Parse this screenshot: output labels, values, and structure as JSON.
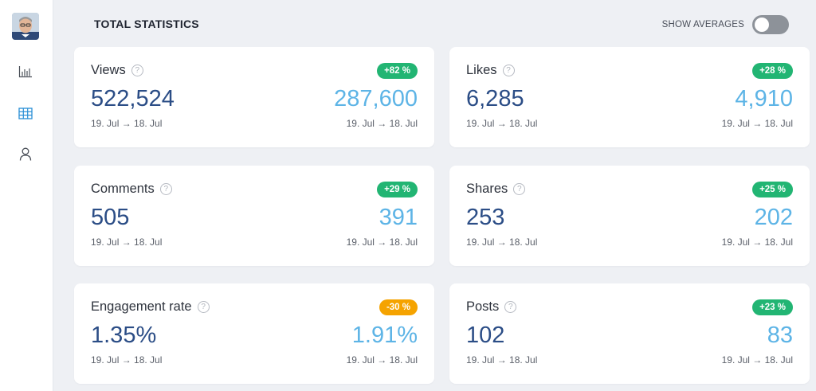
{
  "header": {
    "title": "TOTAL STATISTICS",
    "toggle_label": "SHOW AVERAGES",
    "toggle_on": false
  },
  "sidebar": {
    "items": [
      {
        "icon": "bar-chart-icon",
        "active": false
      },
      {
        "icon": "table-icon",
        "active": true
      },
      {
        "icon": "user-icon",
        "active": false
      }
    ]
  },
  "colors": {
    "positive": "#22b573",
    "negative": "#f5a300",
    "primary_value": "#2b4d86",
    "average_value": "#5db4e6",
    "active_icon": "#2a8fd6"
  },
  "cards": [
    {
      "title": "Views",
      "change": "+82 %",
      "change_type": "positive",
      "value": "522,524",
      "value_range": "19. Jul → 18. Jul",
      "average": "287,600",
      "average_range": "19. Jul → 18. Jul"
    },
    {
      "title": "Likes",
      "change": "+28 %",
      "change_type": "positive",
      "value": "6,285",
      "value_range": "19. Jul → 18. Jul",
      "average": "4,910",
      "average_range": "19. Jul → 18. Jul"
    },
    {
      "title": "Comments",
      "change": "+29 %",
      "change_type": "positive",
      "value": "505",
      "value_range": "19. Jul → 18. Jul",
      "average": "391",
      "average_range": "19. Jul → 18. Jul"
    },
    {
      "title": "Shares",
      "change": "+25 %",
      "change_type": "positive",
      "value": "253",
      "value_range": "19. Jul → 18. Jul",
      "average": "202",
      "average_range": "19. Jul → 18. Jul"
    },
    {
      "title": "Engagement rate",
      "change": "-30 %",
      "change_type": "negative",
      "value": "1.35%",
      "value_range": "19. Jul → 18. Jul",
      "average": "1.91%",
      "average_range": "19. Jul → 18. Jul"
    },
    {
      "title": "Posts",
      "change": "+23 %",
      "change_type": "positive",
      "value": "102",
      "value_range": "19. Jul → 18. Jul",
      "average": "83",
      "average_range": "19. Jul → 18. Jul"
    }
  ]
}
